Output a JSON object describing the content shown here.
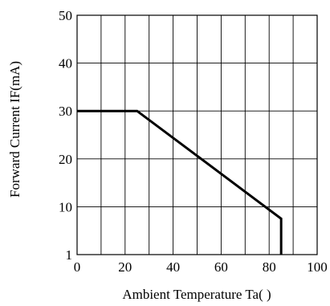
{
  "chart_data": {
    "type": "line",
    "xlabel": "Ambient Temperature Ta(    )",
    "ylabel": "Forward Current IF(mA)",
    "xlim": [
      0,
      100
    ],
    "ylim": [
      0,
      50
    ],
    "x_ticks": [
      "0",
      "20",
      "40",
      "60",
      "80",
      "100"
    ],
    "y_ticks": [
      "1",
      "10",
      "20",
      "30",
      "40",
      "50"
    ],
    "grid": true,
    "series": [
      {
        "points": [
          [
            0,
            30
          ],
          [
            25,
            30
          ],
          [
            85,
            7.5
          ],
          [
            85,
            0
          ]
        ],
        "color": "#000000"
      }
    ]
  }
}
